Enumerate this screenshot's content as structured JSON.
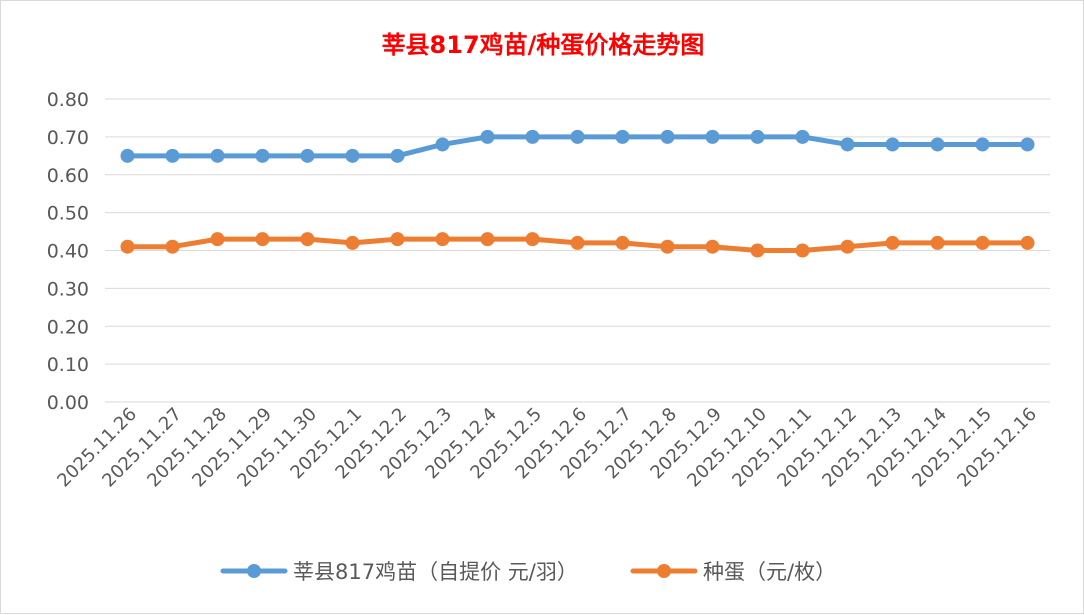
{
  "chart_data": {
    "type": "line",
    "title": "莘县817鸡苗/种蛋价格走势图",
    "categories": [
      "2025.11.26",
      "2025.11.27",
      "2025.11.28",
      "2025.11.29",
      "2025.11.30",
      "2025.12.1",
      "2025.12.2",
      "2025.12.3",
      "2025.12.4",
      "2025.12.5",
      "2025.12.6",
      "2025.12.7",
      "2025.12.8",
      "2025.12.9",
      "2025.12.10",
      "2025.12.11",
      "2025.12.12",
      "2025.12.13",
      "2025.12.14",
      "2025.12.15",
      "2025.12.16"
    ],
    "series": [
      {
        "name": "莘县817鸡苗（自提价 元/羽）",
        "color": "#5B9BD5",
        "values": [
          0.65,
          0.65,
          0.65,
          0.65,
          0.65,
          0.65,
          0.65,
          0.68,
          0.7,
          0.7,
          0.7,
          0.7,
          0.7,
          0.7,
          0.7,
          0.7,
          0.68,
          0.68,
          0.68,
          0.68,
          0.68
        ]
      },
      {
        "name": "种蛋（元/枚）",
        "color": "#ED7D31",
        "values": [
          0.41,
          0.41,
          0.43,
          0.43,
          0.43,
          0.42,
          0.43,
          0.43,
          0.43,
          0.43,
          0.42,
          0.42,
          0.41,
          0.41,
          0.4,
          0.4,
          0.41,
          0.42,
          0.42,
          0.42,
          0.42
        ]
      }
    ],
    "ylim": [
      0,
      0.8
    ],
    "yticks": [
      "0.00",
      "0.10",
      "0.20",
      "0.30",
      "0.40",
      "0.50",
      "0.60",
      "0.70",
      "0.80"
    ],
    "xlabel": "",
    "ylabel": "",
    "grid": true,
    "legend": "bottom",
    "title_color": "#FF0000"
  }
}
